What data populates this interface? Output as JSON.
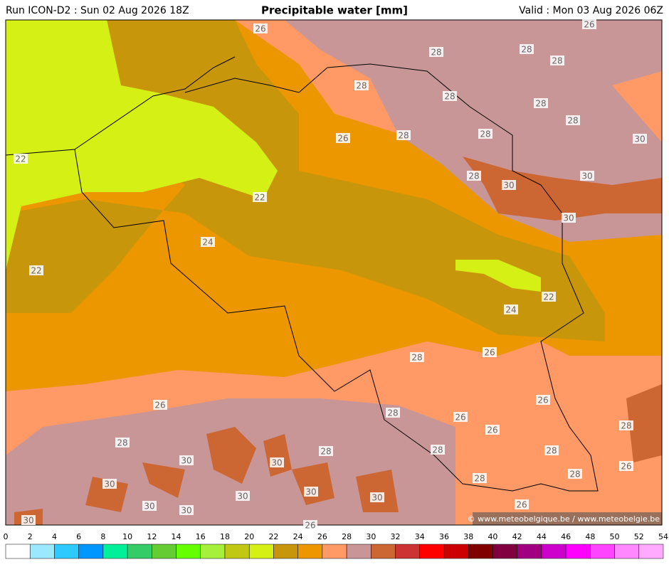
{
  "header": {
    "run": "Run ICON-D2 : Sun 02 Aug 2026 18Z",
    "title": "Precipitable water [mm]",
    "valid": "Valid : Mon 03 Aug 2026 06Z"
  },
  "copyright": "© www.meteobelgique.be / www.meteobelgie.be",
  "contour_labels": [
    26,
    26,
    28,
    28,
    28,
    28,
    28,
    28,
    28,
    28,
    28,
    26,
    30,
    22,
    30,
    28,
    30,
    22,
    30,
    24,
    22,
    22,
    24,
    26,
    28,
    26,
    26,
    28,
    26,
    28,
    26,
    28,
    28,
    28,
    28,
    30,
    30,
    26,
    28,
    28,
    30,
    30,
    30,
    30,
    30,
    30,
    26,
    30,
    26
  ],
  "colorbar": {
    "ticks": [
      0,
      2,
      4,
      6,
      8,
      10,
      12,
      14,
      16,
      18,
      20,
      22,
      24,
      26,
      28,
      30,
      32,
      34,
      36,
      38,
      40,
      42,
      44,
      46,
      48,
      50,
      52,
      54
    ],
    "colors": [
      "#ffffff",
      "#9be8ff",
      "#2ec9ff",
      "#0096ff",
      "#00f09a",
      "#33cc66",
      "#66cc33",
      "#66ff00",
      "#a6f03c",
      "#c0c814",
      "#d4f014",
      "#c8960a",
      "#ec9600",
      "#ff9966",
      "#c89696",
      "#cc6633",
      "#cc3333",
      "#ff0000",
      "#cc0000",
      "#800000",
      "#800040",
      "#a00080",
      "#cc00cc",
      "#ff00ff",
      "#ff44ff",
      "#ff88ff",
      "#ffaaff",
      "#ffffff"
    ]
  }
}
